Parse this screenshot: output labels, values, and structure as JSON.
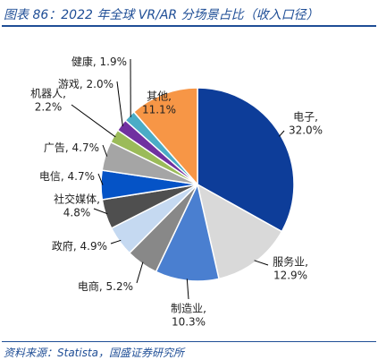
{
  "header": {
    "title": "图表 86：2022 年全球 VR/AR 分场景占比（收入口径）"
  },
  "footer": {
    "source": "资料来源：Statista，国盛证券研究所"
  },
  "chart_data": {
    "type": "pie",
    "title": "",
    "unit": "%",
    "slices": [
      {
        "name": "电子",
        "value": 32.0,
        "color": "#0d3d99",
        "label_lines": [
          "电子,",
          "32.0%"
        ]
      },
      {
        "name": "服务业",
        "value": 12.9,
        "color": "#d9d9d9",
        "label_lines": [
          "服务业,",
          "12.9%"
        ]
      },
      {
        "name": "制造业",
        "value": 10.3,
        "color": "#4a7fd0",
        "label_lines": [
          "制造业,",
          "10.3%"
        ]
      },
      {
        "name": "电商",
        "value": 5.2,
        "color": "#888888",
        "label_lines": [
          "电商, 5.2%"
        ]
      },
      {
        "name": "政府",
        "value": 4.9,
        "color": "#c5d9f1",
        "label_lines": [
          "政府, 4.9%"
        ]
      },
      {
        "name": "社交媒体",
        "value": 4.8,
        "color": "#4f4f4f",
        "label_lines": [
          "社交媒体,",
          "4.8%"
        ]
      },
      {
        "name": "电信",
        "value": 4.7,
        "color": "#0553c6",
        "label_lines": [
          "电信, 4.7%"
        ]
      },
      {
        "name": "广告",
        "value": 4.7,
        "color": "#a5a5a5",
        "label_lines": [
          "广告, 4.7%"
        ]
      },
      {
        "name": "机器人",
        "value": 2.2,
        "color": "#9bbb59",
        "label_lines": [
          "机器人,",
          "2.2%"
        ]
      },
      {
        "name": "游戏",
        "value": 2.0,
        "color": "#7030a0",
        "label_lines": [
          "游戏, 2.0%"
        ]
      },
      {
        "name": "健康",
        "value": 1.9,
        "color": "#4bacc6",
        "label_lines": [
          "健康, 1.9%"
        ]
      },
      {
        "name": "其他",
        "value": 11.1,
        "color": "#f79646",
        "label_lines": [
          "其他,",
          "11.1%"
        ]
      }
    ]
  }
}
